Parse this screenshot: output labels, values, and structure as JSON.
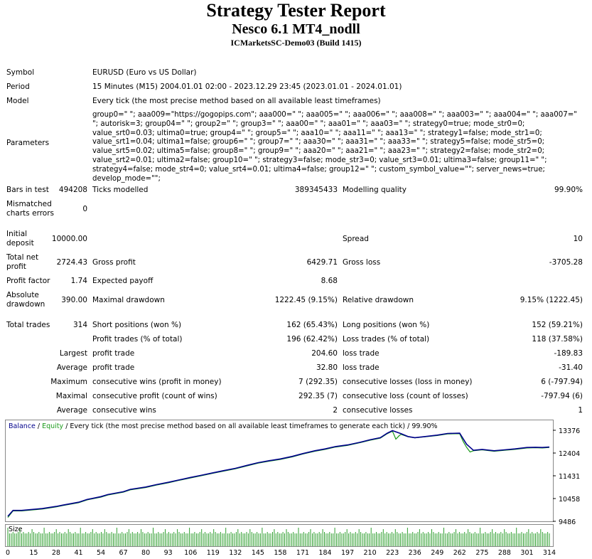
{
  "report": {
    "title": "Strategy Tester Report",
    "expert": "Nesco 6.1 MT4_nodll",
    "server": "ICMarketsSC-Demo03 (Build 1415)"
  },
  "info": {
    "symbol_label": "Symbol",
    "symbol_value": "EURUSD (Euro vs US Dollar)",
    "period_label": "Period",
    "period_value": "15 Minutes (M15) 2004.01.01 02:00 - 2023.12.29 23:45 (2023.01.01 - 2024.01.01)",
    "model_label": "Model",
    "model_value": "Every tick (the most precise method based on all available least timeframes)",
    "parameters_label": "Parameters",
    "parameters_value": "group0=\" \"; aaa009=\"https://gogopips.com\"; aaa000=\" \"; aaa005=\" \"; aaa006=\" \"; aaa008=\" \"; aaa003=\" \"; aaa004=\" \"; aaa007=\" \"; autorisk=3; group04=\" \"; group2=\" \"; group3=\" \"; aaa00=\" \"; aaa01=\" \"; aaa03=\" \"; strategy0=true; mode_str0=0; value_srt0=0.03; ultima0=true; group4=\" \"; group5=\" \"; aaa10=\" \"; aaa11=\" \"; aaa13=\" \"; strategy1=false; mode_str1=0; value_srt1=0.04; ultima1=false; group6=\" \"; group7=\" \"; aaa30=\" \"; aaa31=\" \"; aaa33=\" \"; strategy5=false; mode_str5=0; value_srt5=0.02; ultima5=false; group8=\" \"; group9=\" \"; aaa20=\" \"; aaa21=\" \"; aaa23=\" \"; strategy2=false; mode_str2=0; value_srt2=0.01; ultima2=false; group10=\" \"; strategy3=false; mode_str3=0; value_srt3=0.01; ultima3=false; group11=\" \"; strategy4=false; mode_str4=0; value_srt4=0.01; ultima4=false; group12=\" \"; custom_symbol_value=\"\"; server_news=true; develop_mode=\"\";"
  },
  "stats": {
    "bars_label": "Bars in test",
    "bars_value": "494208",
    "ticks_label": "Ticks modelled",
    "ticks_value": "389345433",
    "quality_label": "Modelling quality",
    "quality_value": "99.90%",
    "mismatched_label": "Mismatched charts errors",
    "mismatched_value": "0",
    "deposit_label": "Initial deposit",
    "deposit_value": "10000.00",
    "spread_label": "Spread",
    "spread_value": "10",
    "netprofit_label": "Total net profit",
    "netprofit_value": "2724.43",
    "grossprofit_label": "Gross profit",
    "grossprofit_value": "6429.71",
    "grossloss_label": "Gross loss",
    "grossloss_value": "-3705.28",
    "pf_label": "Profit factor",
    "pf_value": "1.74",
    "payoff_label": "Expected payoff",
    "payoff_value": "8.68",
    "absdd_label": "Absolute drawdown",
    "absdd_value": "390.00",
    "maxdd_label": "Maximal drawdown",
    "maxdd_value": "1222.45 (9.15%)",
    "reldd_label": "Relative drawdown",
    "reldd_value": "9.15% (1222.45)",
    "trades_label": "Total trades",
    "trades_value": "314",
    "short_label": "Short positions (won %)",
    "short_value": "162 (65.43%)",
    "long_label": "Long positions (won %)",
    "long_value": "152 (59.21%)",
    "ptrades_label": "Profit trades (% of total)",
    "ptrades_value": "196 (62.42%)",
    "ltrades_label": "Loss trades (% of total)",
    "ltrades_value": "118 (37.58%)",
    "largest_label": "Largest",
    "largest_profit_label": "profit trade",
    "largest_profit_value": "204.60",
    "largest_loss_label": "loss trade",
    "largest_loss_value": "-189.83",
    "average_label": "Average",
    "average_profit_label": "profit trade",
    "average_profit_value": "32.80",
    "average_loss_label": "loss trade",
    "average_loss_value": "-31.40",
    "maximum_label": "Maximum",
    "max_wins_label": "consecutive wins (profit in money)",
    "max_wins_value": "7 (292.35)",
    "max_losses_label": "consecutive losses (loss in money)",
    "max_losses_value": "6 (-797.94)",
    "maximal_label": "Maximal",
    "maximal_profit_label": "consecutive profit (count of wins)",
    "maximal_profit_value": "292.35 (7)",
    "maximal_loss_label": "consecutive loss (count of losses)",
    "maximal_loss_value": "-797.94 (6)",
    "avgcons_label": "Average",
    "avg_wins_label": "consecutive wins",
    "avg_wins_value": "2",
    "avg_losses_label": "consecutive losses",
    "avg_losses_value": "1"
  },
  "chart_data": {
    "type": "line",
    "legend_balance": "Balance",
    "legend_sep1": " / ",
    "legend_equity": "Equity",
    "legend_rest": " / Every tick (the most precise method based on all available least timeframes to generate each tick) / 99.90%",
    "size_label": "Size",
    "y_ticks": [
      "13376",
      "12404",
      "11431",
      "10458",
      "9486"
    ],
    "ylim": [
      9486,
      13376
    ],
    "x_ticks": [
      "0",
      "15",
      "28",
      "41",
      "54",
      "67",
      "80",
      "93",
      "106",
      "119",
      "132",
      "145",
      "158",
      "171",
      "184",
      "197",
      "210",
      "223",
      "236",
      "249",
      "262",
      "275",
      "288",
      "301",
      "314"
    ],
    "xlim": [
      0,
      314
    ],
    "series": [
      {
        "name": "Balance",
        "color": "#00008b",
        "x": [
          0,
          3,
          8,
          20,
          28,
          32,
          41,
          46,
          54,
          58,
          67,
          71,
          80,
          86,
          93,
          99,
          106,
          112,
          119,
          125,
          132,
          139,
          145,
          152,
          158,
          165,
          171,
          178,
          184,
          190,
          197,
          204,
          210,
          216,
          220,
          223,
          228,
          232,
          236,
          242,
          249,
          255,
          262,
          266,
          270,
          275,
          282,
          288,
          294,
          301,
          306,
          310,
          314
        ],
        "y": [
          9700,
          9950,
          9950,
          10030,
          10120,
          10180,
          10300,
          10420,
          10540,
          10630,
          10750,
          10850,
          10950,
          11050,
          11150,
          11250,
          11360,
          11450,
          11560,
          11650,
          11750,
          11880,
          11990,
          12080,
          12150,
          12260,
          12380,
          12500,
          12580,
          12680,
          12750,
          12860,
          12970,
          13060,
          13250,
          13360,
          13230,
          13110,
          13060,
          13110,
          13170,
          13240,
          13250,
          12780,
          12520,
          12560,
          12500,
          12540,
          12580,
          12640,
          12650,
          12640,
          12660
        ]
      },
      {
        "name": "Equity",
        "color": "#1a9a1a",
        "x": [
          0,
          3,
          8,
          20,
          28,
          32,
          41,
          46,
          54,
          58,
          67,
          71,
          80,
          86,
          93,
          99,
          106,
          112,
          119,
          125,
          132,
          139,
          145,
          152,
          158,
          165,
          171,
          178,
          184,
          190,
          197,
          204,
          210,
          216,
          220,
          223,
          225,
          227,
          228,
          232,
          236,
          242,
          249,
          255,
          262,
          264,
          266,
          268,
          270,
          275,
          282,
          288,
          294,
          301,
          306,
          310,
          314
        ],
        "y": [
          9650,
          9930,
          9930,
          10010,
          10100,
          10160,
          10280,
          10400,
          10520,
          10610,
          10730,
          10830,
          10930,
          11030,
          11130,
          11230,
          11340,
          11430,
          11540,
          11630,
          11730,
          11860,
          11970,
          12060,
          12130,
          12240,
          12360,
          12480,
          12560,
          12660,
          12730,
          12840,
          12950,
          13040,
          13230,
          13340,
          13000,
          13150,
          13200,
          13100,
          13050,
          13100,
          13150,
          13220,
          13230,
          12900,
          12650,
          12450,
          12500,
          12540,
          12480,
          12520,
          12560,
          12620,
          12630,
          12620,
          12640
        ]
      }
    ],
    "size_bars_count": 314,
    "grid": true
  }
}
